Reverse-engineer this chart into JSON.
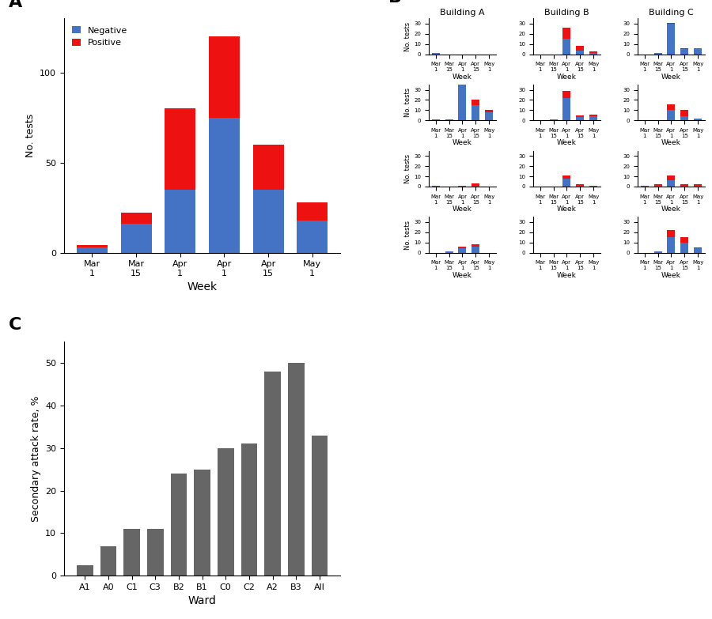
{
  "panel_A": {
    "tick_labels_top": [
      "Mar",
      "Mar",
      "Apr",
      "Apr",
      "Apr",
      "May"
    ],
    "tick_labels_bot": [
      "1",
      "15",
      "1",
      "1",
      "15",
      "1"
    ],
    "negative": [
      3,
      16,
      35,
      75,
      35,
      18
    ],
    "positive": [
      1,
      6,
      45,
      45,
      25,
      10
    ],
    "ylabel": "No. tests",
    "xlabel": "Week",
    "ylim": [
      0,
      130
    ],
    "yticks": [
      0,
      50,
      100
    ]
  },
  "panel_B": {
    "tick_labels_top": [
      "Mar",
      "Mar",
      "Apr",
      "Apr",
      "May"
    ],
    "tick_labels_bot": [
      "1",
      "15",
      "1",
      "15",
      "1"
    ],
    "ylabel": "No. tests",
    "xlabel": "Week",
    "ylim": [
      0,
      35
    ],
    "yticks": [
      0,
      10,
      20,
      30
    ],
    "data": {
      "A": {
        "3": {
          "neg": [
            1,
            0,
            0,
            0,
            0
          ],
          "pos": [
            0,
            0,
            0,
            0,
            0
          ]
        },
        "2": {
          "neg": [
            1,
            1,
            35,
            15,
            8
          ],
          "pos": [
            0,
            0,
            19,
            5,
            2
          ]
        },
        "1": {
          "neg": [
            1,
            0,
            1,
            1,
            0
          ],
          "pos": [
            0,
            0,
            0,
            2,
            0
          ]
        },
        "0": {
          "neg": [
            0,
            1,
            4,
            6,
            0
          ],
          "pos": [
            0,
            0,
            2,
            2,
            0
          ]
        }
      },
      "B": {
        "3": {
          "neg": [
            0,
            0,
            15,
            4,
            1
          ],
          "pos": [
            0,
            0,
            11,
            4,
            2
          ]
        },
        "2": {
          "neg": [
            0,
            1,
            22,
            3,
            4
          ],
          "pos": [
            0,
            0,
            7,
            2,
            2
          ]
        },
        "1": {
          "neg": [
            0,
            0,
            8,
            1,
            1
          ],
          "pos": [
            0,
            0,
            3,
            1,
            0
          ]
        },
        "0": {
          "neg": [
            0,
            0,
            0,
            0,
            0
          ],
          "pos": [
            0,
            0,
            0,
            0,
            0
          ]
        }
      },
      "C": {
        "3": {
          "neg": [
            0,
            1,
            30,
            5,
            6
          ],
          "pos": [
            0,
            0,
            1,
            1,
            0
          ]
        },
        "2": {
          "neg": [
            0,
            0,
            10,
            4,
            2
          ],
          "pos": [
            0,
            0,
            6,
            6,
            0
          ]
        },
        "1": {
          "neg": [
            1,
            1,
            6,
            1,
            1
          ],
          "pos": [
            0,
            1,
            5,
            1,
            1
          ]
        },
        "0": {
          "neg": [
            0,
            1,
            15,
            10,
            4
          ],
          "pos": [
            0,
            0,
            7,
            5,
            1
          ]
        }
      }
    }
  },
  "panel_C": {
    "wards": [
      "A1",
      "A0",
      "C1",
      "C3",
      "B2",
      "B1",
      "C0",
      "C2",
      "A2",
      "B3",
      "All"
    ],
    "rates": [
      2.5,
      7.0,
      11.0,
      11.0,
      24.0,
      25.0,
      30.0,
      31.0,
      48.0,
      50.0,
      33.0
    ],
    "bar_color": "#666666",
    "ylabel": "Secondary attack rate, %",
    "xlabel": "Ward",
    "ylim": [
      0,
      55
    ],
    "yticks": [
      0,
      10.0,
      20.0,
      30.0,
      40.0,
      50.0
    ]
  },
  "colors": {
    "negative": "#4472C4",
    "positive": "#EE1111"
  }
}
